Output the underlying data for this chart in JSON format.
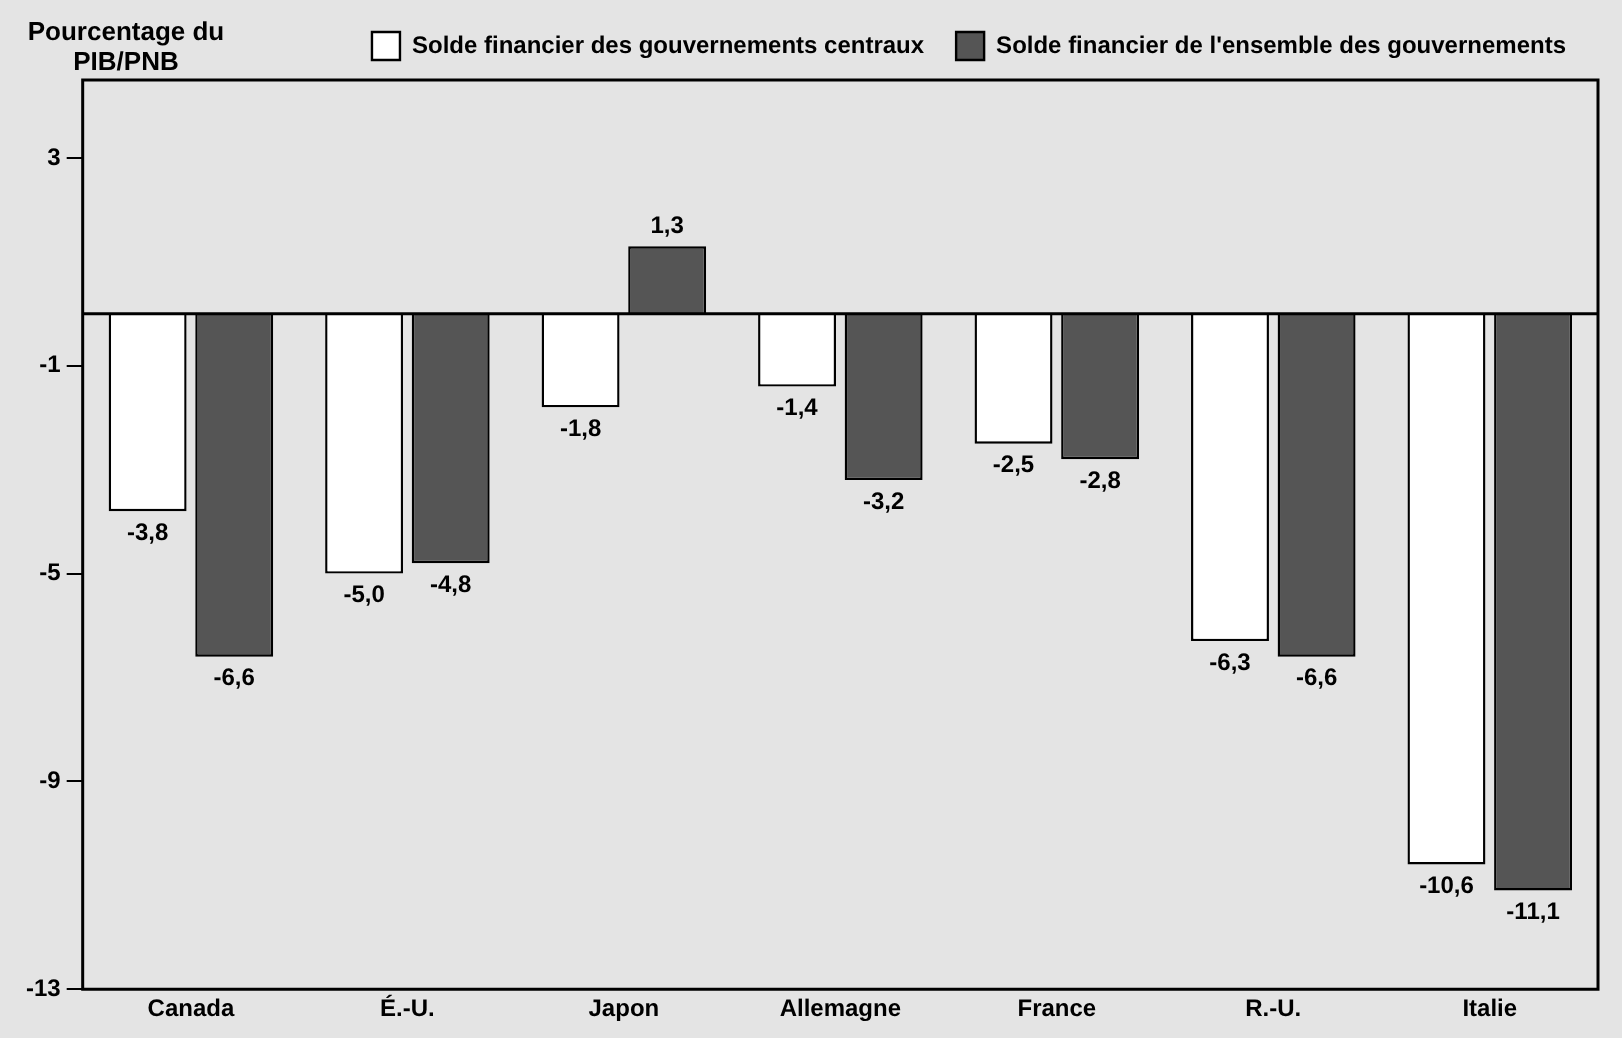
{
  "chart_data": {
    "type": "bar",
    "ylabel": "Pourcentage du PIB/PNB",
    "categories": [
      "Canada",
      "É.-U.",
      "Japon",
      "Allemagne",
      "France",
      "R.-U.",
      "Italie"
    ],
    "series": [
      {
        "name": "Solde financier des gouvernements centraux",
        "color": "#ffffff",
        "values": [
          -3.8,
          -5.0,
          -1.8,
          -1.4,
          -2.5,
          -6.3,
          -10.6
        ],
        "value_labels": [
          "-3,8",
          "-5,0",
          "-1,8",
          "-1,4",
          "-2,5",
          "-6,3",
          "-10,6"
        ]
      },
      {
        "name": "Solde financier de l'ensemble des gouvernements",
        "color": "#555555",
        "values": [
          -6.6,
          -4.8,
          1.3,
          -3.2,
          -2.8,
          -6.6,
          -11.1
        ],
        "value_labels": [
          "-6,6",
          "-4,8",
          "1,3",
          "-3,2",
          "-2,8",
          "-6,6",
          "-11,1"
        ]
      }
    ],
    "ylim": [
      -13,
      4.5
    ],
    "yticks": [
      3,
      -1,
      -5,
      -9,
      -13
    ],
    "grid": false,
    "legend": "top"
  }
}
